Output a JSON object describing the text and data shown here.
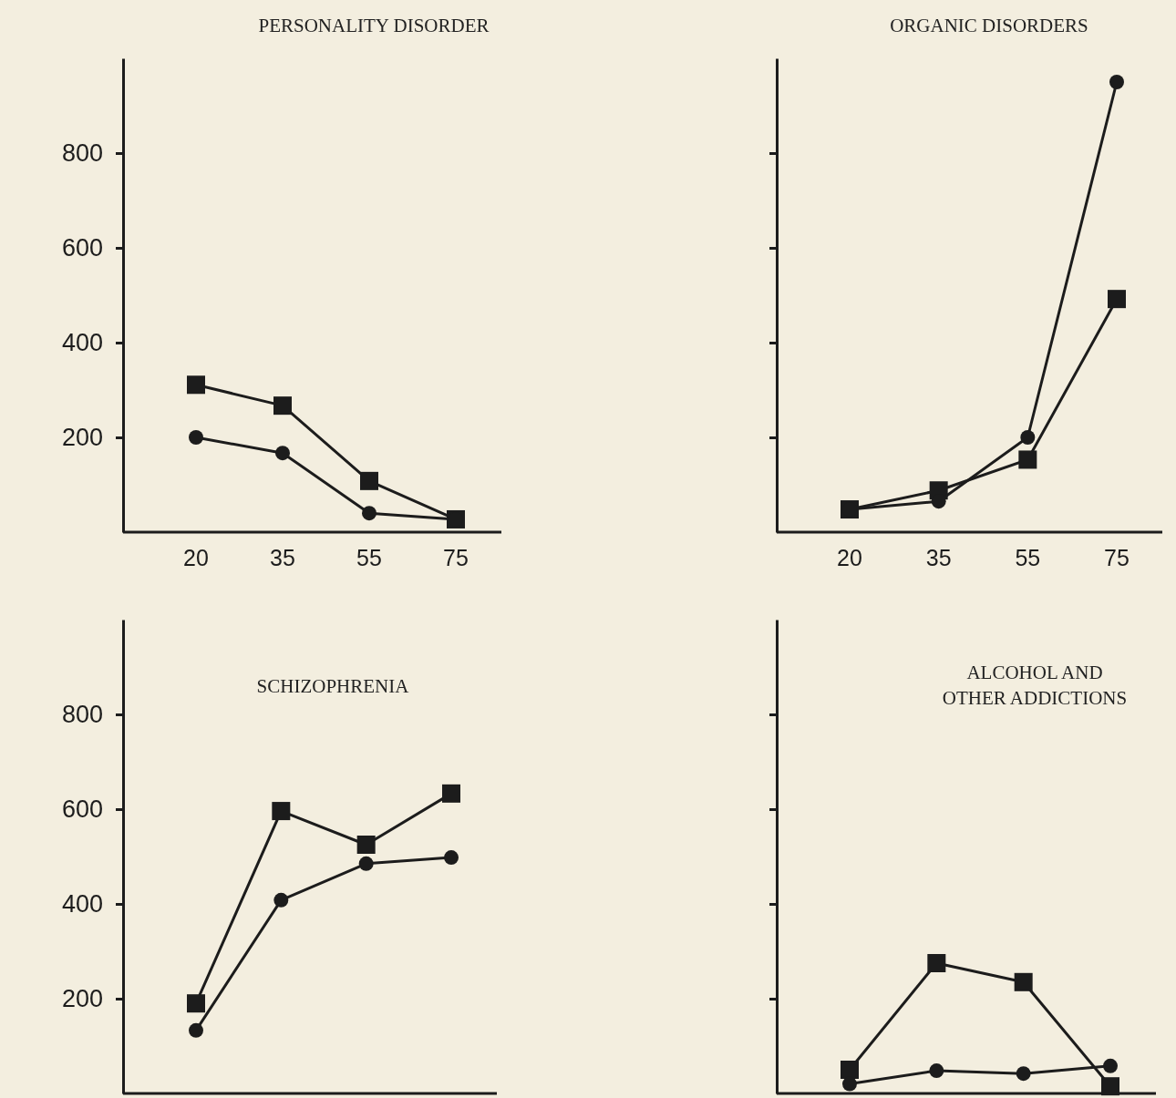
{
  "chart_data": [
    {
      "type": "line",
      "title": "PERSONALITY DISORDER",
      "categories": [
        "20",
        "35",
        "55",
        "75"
      ],
      "ylim": [
        0,
        1000
      ],
      "yticks": [
        200,
        400,
        600,
        800
      ],
      "series": [
        {
          "color": "#1c1c1c",
          "marker": "square",
          "values": [
            311,
            267,
            108,
            27
          ]
        },
        {
          "color": "#1c1c1c",
          "marker": "circle",
          "values": [
            200,
            167,
            40,
            27
          ]
        }
      ]
    },
    {
      "type": "line",
      "title": "ORGANIC DISORDERS",
      "categories": [
        "20",
        "35",
        "55",
        "75"
      ],
      "ylim": [
        0,
        1000
      ],
      "yticks": [
        200,
        400,
        600,
        800
      ],
      "tick_labels": "x",
      "series": [
        {
          "color": "#1c1c1c",
          "marker": "square",
          "values": [
            48,
            88,
            153,
            492
          ]
        },
        {
          "color": "#1c1c1c",
          "marker": "circle",
          "values": [
            48,
            65,
            200,
            950
          ]
        }
      ]
    },
    {
      "type": "line",
      "title": "SCHIZOPHRENIA",
      "categories": [
        null,
        null,
        null,
        null
      ],
      "ylim": [
        0,
        1000
      ],
      "yticks": [
        200,
        400,
        600,
        800
      ],
      "tick_labels": "y",
      "series": [
        {
          "color": "#1c1c1c",
          "marker": "square",
          "values": [
            190,
            596,
            525,
            633
          ]
        },
        {
          "color": "#1c1c1c",
          "marker": "circle",
          "values": [
            133,
            408,
            485,
            498
          ]
        }
      ]
    },
    {
      "type": "line",
      "title": "ALCOHOL AND OTHER ADDICTIONS",
      "categories": [
        null,
        null,
        null,
        null
      ],
      "ylim": [
        0,
        1000
      ],
      "yticks": [
        200,
        400,
        600,
        800
      ],
      "tick_labels": false,
      "series": [
        {
          "color": "#1c1c1c",
          "marker": "square",
          "values": [
            50,
            275,
            235,
            15
          ]
        },
        {
          "color": "#1c1c1c",
          "marker": "circle",
          "values": [
            20,
            48,
            42,
            58
          ]
        }
      ]
    }
  ]
}
